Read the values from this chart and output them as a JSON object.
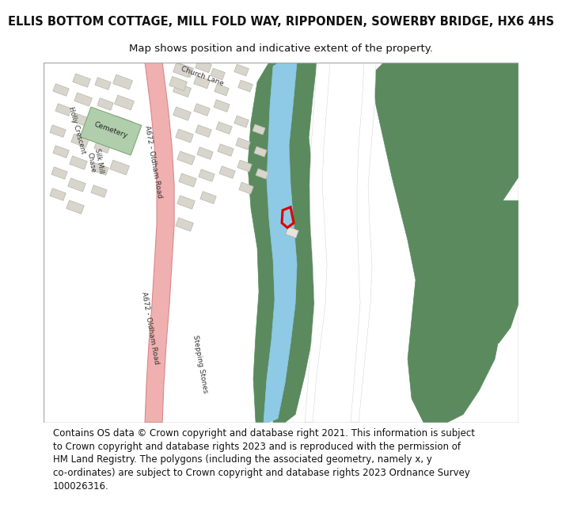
{
  "title_line1": "ELLIS BOTTOM COTTAGE, MILL FOLD WAY, RIPPONDEN, SOWERBY BRIDGE, HX6 4HS",
  "title_line2": "Map shows position and indicative extent of the property.",
  "footer_lines": [
    "Contains OS data © Crown copyright and database right 2021. This information is subject",
    "to Crown copyright and database rights 2023 and is reproduced with the permission of",
    "HM Land Registry. The polygons (including the associated geometry, namely x, y",
    "co-ordinates) are subject to Crown copyright and database rights 2023 Ordnance Survey",
    "100026316."
  ],
  "bg_color": "#ffffff",
  "map_bg": "#f2f0ed",
  "green_color": "#5a8a5e",
  "blue_color": "#8ecae6",
  "pink_road": "#f0b0b0",
  "pink_road_border": "#d88888",
  "gray_bld": "#d8d5cc",
  "gray_bld_edge": "#b8b5aa",
  "cemetery_color": "#b0ceac",
  "red_plot": "#dd0000",
  "white_road": "#ffffff",
  "white_road_edge": "#cccccc",
  "title_fontsize": 10.5,
  "subtitle_fontsize": 9.5,
  "footer_fontsize": 8.5,
  "label_fontsize": 6.5
}
